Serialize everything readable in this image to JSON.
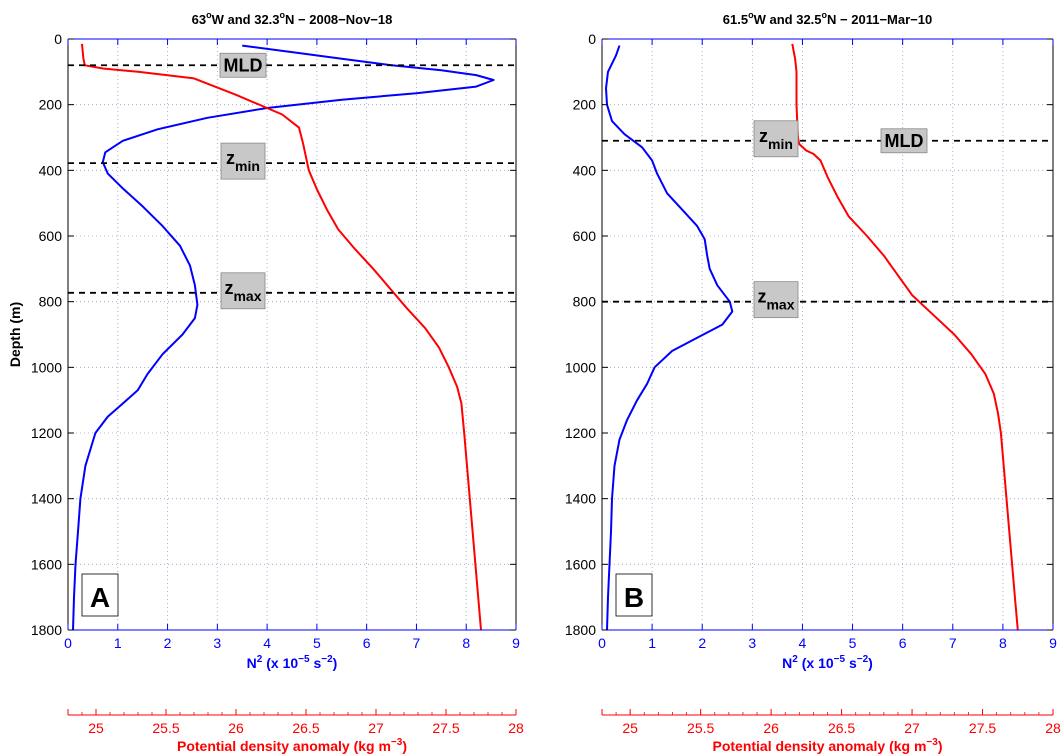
{
  "colors": {
    "n2": "#0000ff",
    "density": "#ff0000",
    "grid": "#9aa0c8",
    "label_box": "#c8c8c8"
  },
  "chart_data": [
    {
      "type": "line",
      "panel_label": "A",
      "title": "63",
      "title_sup": "o",
      "title_mid": "W and 32.3",
      "title_sup2": "o",
      "title_end": "N − 2008−Nov−18",
      "ylabel": "Depth (m)",
      "ylim": [
        0,
        1800
      ],
      "y_inverted": true,
      "yticks": [
        "0",
        "200",
        "400",
        "600",
        "800",
        "1000",
        "1200",
        "1400",
        "1600",
        "1800"
      ],
      "x_axis": {
        "label_pre": "N",
        "label_sup": "2",
        "label_mid": " (x 10",
        "label_sup2": "−5",
        "label_mid2": " s",
        "label_sup3": "−2",
        "label_end": ")",
        "range": [
          0,
          9
        ],
        "ticks": [
          "0",
          "1",
          "2",
          "3",
          "4",
          "5",
          "6",
          "7",
          "8",
          "9"
        ]
      },
      "x2_axis": {
        "label_pre": "Potential density anomaly (kg m",
        "label_sup": "−3",
        "label_end": ")",
        "range": [
          24.8,
          28
        ],
        "ticks": [
          "25",
          "25.5",
          "26",
          "26.5",
          "27",
          "27.5",
          "28"
        ]
      },
      "grid": true,
      "series": [
        {
          "axis": "x",
          "color": "#0000ff",
          "points": [
            [
              3.5,
              20
            ],
            [
              4.5,
              40
            ],
            [
              5.5,
              60
            ],
            [
              6.5,
              80
            ],
            [
              7.5,
              95
            ],
            [
              8.2,
              110
            ],
            [
              8.55,
              125
            ],
            [
              8.2,
              145
            ],
            [
              7.0,
              165
            ],
            [
              5.5,
              185
            ],
            [
              4.0,
              210
            ],
            [
              2.8,
              240
            ],
            [
              1.8,
              275
            ],
            [
              1.1,
              310
            ],
            [
              0.75,
              345
            ],
            [
              0.7,
              375
            ],
            [
              0.8,
              410
            ],
            [
              1.1,
              455
            ],
            [
              1.5,
              510
            ],
            [
              1.9,
              570
            ],
            [
              2.25,
              630
            ],
            [
              2.45,
              690
            ],
            [
              2.55,
              750
            ],
            [
              2.6,
              810
            ],
            [
              2.55,
              850
            ],
            [
              2.3,
              900
            ],
            [
              1.9,
              960
            ],
            [
              1.6,
              1020
            ],
            [
              1.4,
              1070
            ],
            [
              1.1,
              1110
            ],
            [
              0.8,
              1150
            ],
            [
              0.55,
              1200
            ],
            [
              0.35,
              1300
            ],
            [
              0.25,
              1400
            ],
            [
              0.2,
              1500
            ],
            [
              0.15,
              1600
            ],
            [
              0.12,
              1700
            ],
            [
              0.1,
              1800
            ]
          ]
        },
        {
          "axis": "x2",
          "color": "#ff0000",
          "points": [
            [
              24.9,
              15
            ],
            [
              24.91,
              60
            ],
            [
              24.92,
              80
            ],
            [
              25.05,
              90
            ],
            [
              25.3,
              100
            ],
            [
              25.7,
              120
            ],
            [
              26.0,
              170
            ],
            [
              26.33,
              230
            ],
            [
              26.45,
              270
            ],
            [
              26.48,
              320
            ],
            [
              26.52,
              400
            ],
            [
              26.58,
              460
            ],
            [
              26.65,
              520
            ],
            [
              26.73,
              580
            ],
            [
              26.85,
              640
            ],
            [
              26.98,
              700
            ],
            [
              27.1,
              760
            ],
            [
              27.22,
              820
            ],
            [
              27.35,
              880
            ],
            [
              27.45,
              940
            ],
            [
              27.52,
              1000
            ],
            [
              27.58,
              1060
            ],
            [
              27.61,
              1110
            ],
            [
              27.63,
              1200
            ],
            [
              27.65,
              1300
            ],
            [
              27.67,
              1400
            ],
            [
              27.69,
              1500
            ],
            [
              27.71,
              1600
            ],
            [
              27.73,
              1700
            ],
            [
              27.75,
              1800
            ]
          ]
        }
      ],
      "hlines": [
        {
          "label": "MLD",
          "depth": 80
        },
        {
          "label": "z",
          "sub": "min",
          "depth": 378
        },
        {
          "label": "z",
          "sub": "max",
          "depth": 773
        }
      ]
    },
    {
      "type": "line",
      "panel_label": "B",
      "title": "61.5",
      "title_sup": "o",
      "title_mid": "W and 32.5",
      "title_sup2": "o",
      "title_end": "N − 2011−Mar−10",
      "ylabel": "",
      "ylim": [
        0,
        1800
      ],
      "y_inverted": true,
      "yticks": [
        "0",
        "200",
        "400",
        "600",
        "800",
        "1000",
        "1200",
        "1400",
        "1600",
        "1800"
      ],
      "x_axis": {
        "label_pre": "N",
        "label_sup": "2",
        "label_mid": " (x 10",
        "label_sup2": "−5",
        "label_mid2": " s",
        "label_sup3": "−2",
        "label_end": ")",
        "range": [
          0,
          9
        ],
        "ticks": [
          "0",
          "1",
          "2",
          "3",
          "4",
          "5",
          "6",
          "7",
          "8",
          "9"
        ]
      },
      "x2_axis": {
        "label_pre": "Potential density anomaly (kg m",
        "label_sup": "−3",
        "label_end": ")",
        "range": [
          24.8,
          28
        ],
        "ticks": [
          "25",
          "25.5",
          "26",
          "26.5",
          "27",
          "27.5",
          "28"
        ]
      },
      "grid": true,
      "series": [
        {
          "axis": "x",
          "color": "#0000ff",
          "points": [
            [
              0.35,
              20
            ],
            [
              0.28,
              50
            ],
            [
              0.12,
              100
            ],
            [
              0.08,
              150
            ],
            [
              0.1,
              200
            ],
            [
              0.2,
              250
            ],
            [
              0.45,
              290
            ],
            [
              0.8,
              330
            ],
            [
              1.0,
              370
            ],
            [
              1.1,
              410
            ],
            [
              1.3,
              470
            ],
            [
              1.6,
              520
            ],
            [
              1.9,
              570
            ],
            [
              2.05,
              610
            ],
            [
              2.1,
              660
            ],
            [
              2.15,
              700
            ],
            [
              2.3,
              750
            ],
            [
              2.55,
              800
            ],
            [
              2.6,
              830
            ],
            [
              2.4,
              870
            ],
            [
              1.9,
              910
            ],
            [
              1.4,
              950
            ],
            [
              1.05,
              1000
            ],
            [
              0.9,
              1050
            ],
            [
              0.7,
              1100
            ],
            [
              0.5,
              1160
            ],
            [
              0.35,
              1220
            ],
            [
              0.25,
              1300
            ],
            [
              0.2,
              1400
            ],
            [
              0.18,
              1500
            ],
            [
              0.15,
              1600
            ],
            [
              0.12,
              1700
            ],
            [
              0.1,
              1800
            ]
          ]
        },
        {
          "axis": "x2",
          "color": "#ff0000",
          "points": [
            [
              26.15,
              15
            ],
            [
              26.17,
              60
            ],
            [
              26.18,
              100
            ],
            [
              26.18,
              200
            ],
            [
              26.19,
              300
            ],
            [
              26.2,
              320
            ],
            [
              26.25,
              340
            ],
            [
              26.3,
              350
            ],
            [
              26.35,
              370
            ],
            [
              26.4,
              420
            ],
            [
              26.47,
              480
            ],
            [
              26.55,
              540
            ],
            [
              26.68,
              600
            ],
            [
              26.8,
              660
            ],
            [
              26.9,
              720
            ],
            [
              27.0,
              780
            ],
            [
              27.15,
              840
            ],
            [
              27.3,
              900
            ],
            [
              27.42,
              960
            ],
            [
              27.52,
              1020
            ],
            [
              27.58,
              1080
            ],
            [
              27.61,
              1140
            ],
            [
              27.63,
              1200
            ],
            [
              27.65,
              1300
            ],
            [
              27.67,
              1400
            ],
            [
              27.69,
              1500
            ],
            [
              27.71,
              1600
            ],
            [
              27.73,
              1700
            ],
            [
              27.75,
              1800
            ]
          ]
        }
      ],
      "hlines": [
        {
          "label": "MLD",
          "depth": 310
        },
        {
          "label": "z",
          "sub": "min",
          "depth": 310
        },
        {
          "label": "z",
          "sub": "max",
          "depth": 800
        }
      ]
    }
  ]
}
